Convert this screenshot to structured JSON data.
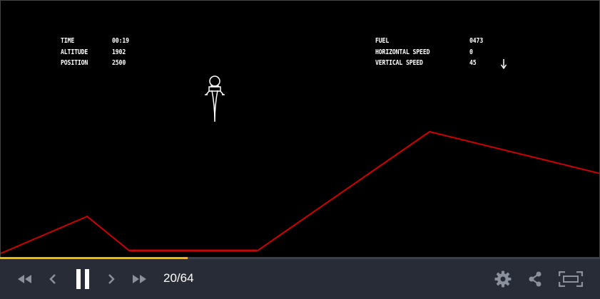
{
  "hud": {
    "time_label": "TIME",
    "time_value": "00:19",
    "altitude_label": "ALTITUDE",
    "altitude_value": "1902",
    "position_label": "POSITION",
    "position_value": "2500",
    "fuel_label": "FUEL",
    "fuel_value": "0473",
    "hspeed_label": "HORIZONTAL SPEED",
    "hspeed_value": "0",
    "vspeed_label": "VERTICAL SPEED",
    "vspeed_value": "45",
    "vspeed_direction_icon": "arrow-down-icon"
  },
  "terrain": {
    "color": "#cc0000",
    "landing_pad_color": "#cc0000"
  },
  "player": {
    "frame_current": 20,
    "frame_total": 64,
    "frame_counter": "20/64",
    "progress_fraction": 0.3125,
    "progress_color": "#f2b705",
    "bar_color": "#272c36",
    "icons": {
      "rewind": "fast-rewind-icon",
      "previous": "chevron-left-icon",
      "pause": "pause-icon",
      "next": "chevron-right-icon",
      "forward": "fast-forward-icon",
      "settings": "gear-icon",
      "share": "share-icon",
      "fullscreen": "fullscreen-icon"
    }
  }
}
